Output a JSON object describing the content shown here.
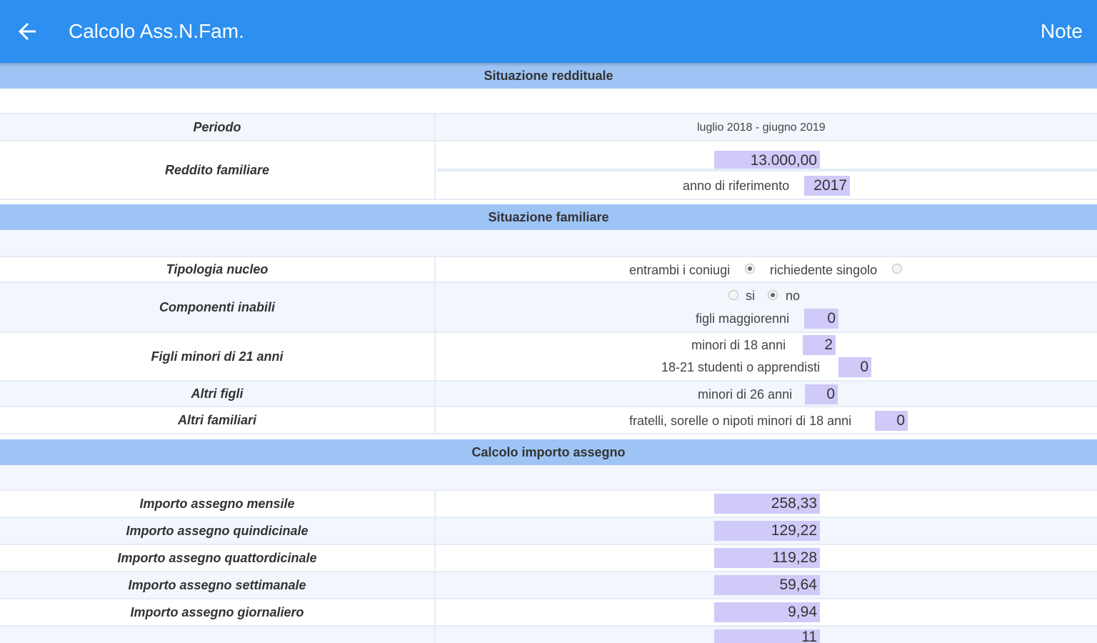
{
  "appbar": {
    "title": "Calcolo Ass.N.Fam.",
    "note_label": "Note"
  },
  "sections": {
    "reddito": "Situazione reddituale",
    "familiare": "Situazione familiare",
    "calcolo": "Calcolo importo assegno"
  },
  "reddito": {
    "periodo_label": "Periodo",
    "periodo_value": "luglio 2018 - giugno 2019",
    "reddito_label": "Reddito familiare",
    "reddito_value": "13.000,00",
    "anno_label": "anno di riferimento",
    "anno_value": "2017"
  },
  "familiare": {
    "tipologia_label": "Tipologia nucleo",
    "opt_coniugi": "entrambi i coniugi",
    "opt_singolo": "richiedente singolo",
    "inabili_label": "Componenti inabili",
    "opt_si": "si",
    "opt_no": "no",
    "figli_magg_label": "figli maggiorenni",
    "figli_magg_value": "0",
    "figli_minori_label": "Figli minori di 21 anni",
    "minori18_label": "minori di 18 anni",
    "minori18_value": "2",
    "studenti_label": "18-21 studenti o apprendisti",
    "studenti_value": "0",
    "altri_figli_label": "Altri figli",
    "minori26_label": "minori di 26 anni",
    "minori26_value": "0",
    "altri_fam_label": "Altri familiari",
    "fratelli_label": "fratelli, sorelle o nipoti minori di 18 anni",
    "fratelli_value": "0"
  },
  "calcolo": {
    "mensile_label": "Importo assegno mensile",
    "mensile_value": "258,33",
    "quindicinale_label": "Importo assegno quindicinale",
    "quindicinale_value": "129,22",
    "quattordicinale_label": "Importo assegno quattordicinale",
    "quattordicinale_value": "119,28",
    "settimanale_label": "Importo assegno settimanale",
    "settimanale_value": "59,64",
    "giornaliero_label": "Importo assegno giornaliero",
    "giornaliero_value": "9,94",
    "orario_value": "11"
  },
  "colors": {
    "appbar": "#2d8ff0",
    "section": "#9ec4f5",
    "field": "#cfcaf8"
  },
  "icons": {
    "back": "arrow-back-icon"
  }
}
